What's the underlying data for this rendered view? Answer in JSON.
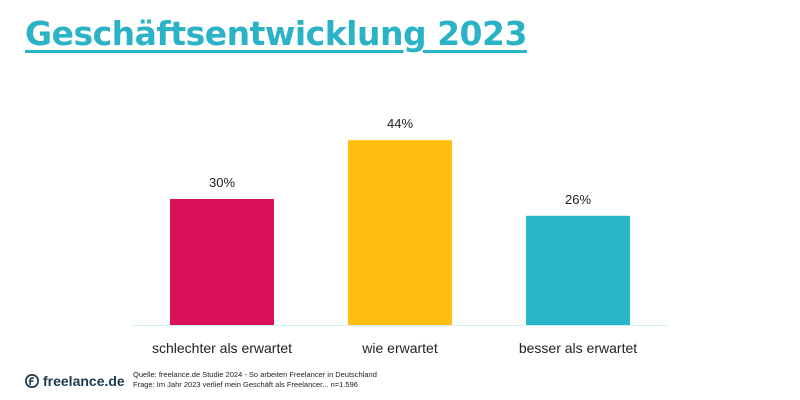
{
  "title": "Geschäftsentwicklung 2023",
  "chart_data": {
    "type": "bar",
    "categories": [
      "schlechter als erwartet",
      "wie erwartet",
      "besser als erwartet"
    ],
    "values": [
      30,
      44,
      26
    ],
    "value_labels": [
      "30%",
      "44%",
      "26%"
    ],
    "colors": [
      "#dc0f5a",
      "#ffbe0f",
      "#29b6c8"
    ],
    "unit": "%",
    "ylim": [
      0,
      50
    ],
    "grid": false
  },
  "footer": {
    "logo_text": "freelance.de",
    "source": "Quelle: freelance.de Studie 2024 - So arbeiten Freelancer in Deutschland",
    "question": "Frage: Im Jahr 2023 verlief mein Geschäft als Freelancer... n=1.596"
  },
  "colors": {
    "accent": "#2ab3c6",
    "axis": "#cfeef3",
    "logo_dark": "#1d3b4f"
  },
  "icons": {
    "logo": "freelance-logo-icon"
  }
}
